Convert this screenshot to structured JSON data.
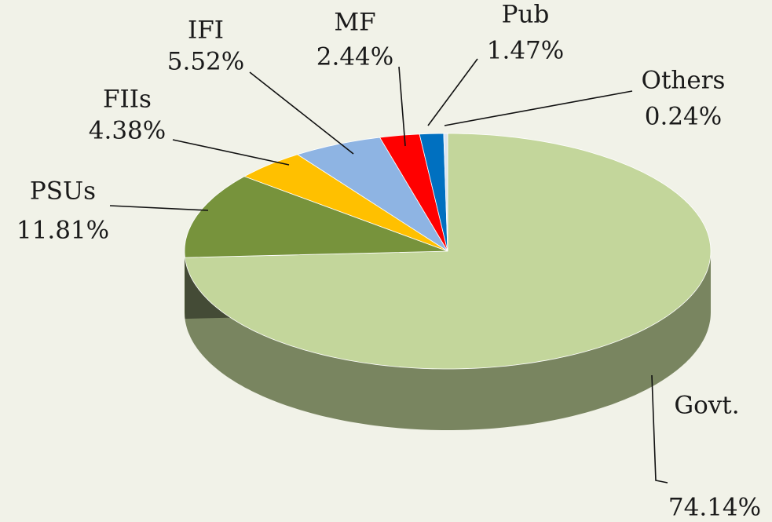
{
  "chart_data": {
    "type": "pie",
    "categories": [
      "Govt.",
      "PSUs",
      "FIIs",
      "IFI",
      "MF",
      "Pub",
      "Others"
    ],
    "values": [
      74.14,
      11.81,
      4.38,
      5.52,
      2.44,
      1.47,
      0.24
    ],
    "value_labels": [
      "74.14%",
      "11.81%",
      "4.38%",
      "5.52%",
      "2.44%",
      "1.47%",
      "0.24%"
    ],
    "colors": [
      "#c3d69b",
      "#77933c",
      "#ffc000",
      "#8eb4e3",
      "#ff0000",
      "#0070c0",
      "#dbe5f1"
    ]
  }
}
